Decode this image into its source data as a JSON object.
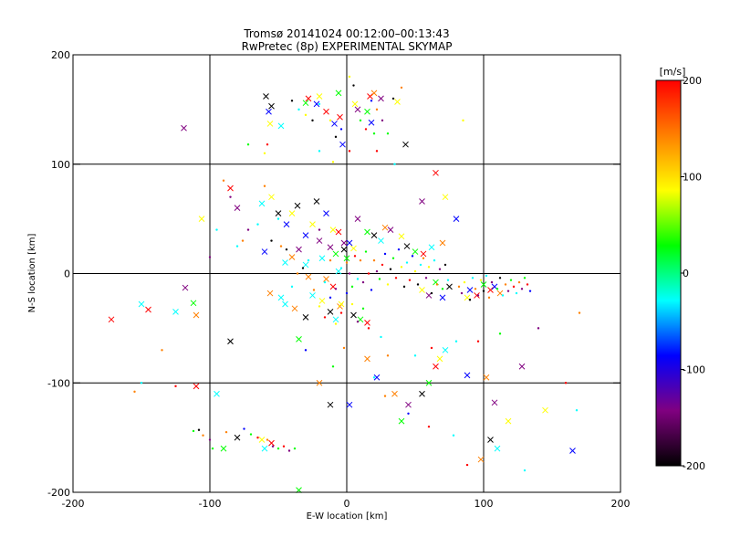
{
  "chart_data": {
    "type": "scatter",
    "title": "Tromsø 20141024 00:12:00–00:13:43",
    "subtitle": "RwPretec (8p) EXPERIMENTAL SKYMAP",
    "xlabel": "E-W location [km]",
    "ylabel": "N-S location [km]",
    "xlim": [
      -200,
      200
    ],
    "ylim": [
      -200,
      200
    ],
    "xticks": [
      "-200",
      "-100",
      "0",
      "100",
      "200"
    ],
    "yticks": [
      "-200",
      "-100",
      "0",
      "100",
      "200"
    ],
    "grid": true,
    "colorbar": {
      "label": "[m/s]",
      "range": [
        -200,
        200
      ],
      "ticks": [
        "200",
        "100",
        "0",
        "-100",
        "-200"
      ],
      "colors": [
        "#000000",
        "#800080",
        "#0000ff",
        "#00ffff",
        "#00ff00",
        "#ffff00",
        "#ff8000",
        "#ff0000"
      ]
    },
    "series": [
      {
        "marker": "x",
        "points": [
          [
            -119,
            133
          ],
          [
            -59,
            162
          ],
          [
            -57,
            148
          ],
          [
            -56,
            137
          ],
          [
            -55,
            153
          ],
          [
            -48,
            135
          ],
          [
            -30,
            156
          ],
          [
            -28,
            160
          ],
          [
            -22,
            155
          ],
          [
            -20,
            162
          ],
          [
            -15,
            148
          ],
          [
            -9,
            137
          ],
          [
            -6,
            165
          ],
          [
            -5,
            143
          ],
          [
            -3,
            118
          ],
          [
            6,
            155
          ],
          [
            8,
            150
          ],
          [
            15,
            148
          ],
          [
            17,
            162
          ],
          [
            18,
            138
          ],
          [
            20,
            165
          ],
          [
            25,
            160
          ],
          [
            37,
            157
          ],
          [
            43,
            118
          ],
          [
            -118,
            -13
          ],
          [
            -112,
            -27
          ],
          [
            -110,
            -38
          ],
          [
            -125,
            -35
          ],
          [
            -145,
            -33
          ],
          [
            -150,
            -28
          ],
          [
            -172,
            -42
          ],
          [
            -106,
            50
          ],
          [
            -85,
            78
          ],
          [
            -80,
            60
          ],
          [
            -62,
            64
          ],
          [
            -55,
            70
          ],
          [
            -50,
            55
          ],
          [
            -48,
            -22
          ],
          [
            -56,
            -18
          ],
          [
            -60,
            20
          ],
          [
            -45,
            10
          ],
          [
            -40,
            15
          ],
          [
            -35,
            22
          ],
          [
            -30,
            8
          ],
          [
            -28,
            -3
          ],
          [
            -20,
            30
          ],
          [
            -18,
            14
          ],
          [
            -15,
            -5
          ],
          [
            -12,
            24
          ],
          [
            -8,
            18
          ],
          [
            -5,
            -30
          ],
          [
            -2,
            28
          ],
          [
            0,
            14
          ],
          [
            -44,
            45
          ],
          [
            -40,
            55
          ],
          [
            -36,
            62
          ],
          [
            -30,
            35
          ],
          [
            -25,
            45
          ],
          [
            -22,
            66
          ],
          [
            -15,
            55
          ],
          [
            -10,
            40
          ],
          [
            -6,
            38
          ],
          [
            2,
            28
          ],
          [
            5,
            23
          ],
          [
            8,
            50
          ],
          [
            15,
            38
          ],
          [
            20,
            35
          ],
          [
            25,
            30
          ],
          [
            28,
            42
          ],
          [
            32,
            40
          ],
          [
            40,
            34
          ],
          [
            44,
            25
          ],
          [
            50,
            20
          ],
          [
            56,
            18
          ],
          [
            62,
            24
          ],
          [
            70,
            28
          ],
          [
            80,
            50
          ],
          [
            72,
            70
          ],
          [
            65,
            92
          ],
          [
            55,
            66
          ],
          [
            -45,
            -28
          ],
          [
            -38,
            -32
          ],
          [
            -30,
            -40
          ],
          [
            -25,
            -20
          ],
          [
            -18,
            -25
          ],
          [
            -12,
            -35
          ],
          [
            -8,
            -42
          ],
          [
            -4,
            -28
          ],
          [
            5,
            -38
          ],
          [
            10,
            -42
          ],
          [
            15,
            -45
          ],
          [
            -85,
            -62
          ],
          [
            -95,
            -110
          ],
          [
            -110,
            -103
          ],
          [
            -80,
            -150
          ],
          [
            -90,
            -160
          ],
          [
            -62,
            -152
          ],
          [
            -55,
            -155
          ],
          [
            -60,
            -160
          ],
          [
            -35,
            -60
          ],
          [
            -20,
            -100
          ],
          [
            -12,
            -120
          ],
          [
            2,
            -120
          ],
          [
            15,
            -78
          ],
          [
            22,
            -95
          ],
          [
            35,
            -110
          ],
          [
            45,
            -120
          ],
          [
            40,
            -135
          ],
          [
            55,
            -110
          ],
          [
            60,
            -100
          ],
          [
            65,
            -85
          ],
          [
            72,
            -70
          ],
          [
            68,
            -78
          ],
          [
            88,
            -93
          ],
          [
            102,
            -95
          ],
          [
            108,
            -118
          ],
          [
            118,
            -135
          ],
          [
            128,
            -85
          ],
          [
            145,
            -125
          ],
          [
            165,
            -162
          ],
          [
            105,
            -152
          ],
          [
            110,
            -160
          ],
          [
            98,
            -170
          ],
          [
            -35,
            -198
          ],
          [
            100,
            -10
          ],
          [
            105,
            -15
          ],
          [
            108,
            -12
          ],
          [
            112,
            -18
          ],
          [
            95,
            -20
          ],
          [
            90,
            -15
          ],
          [
            88,
            -22
          ],
          [
            55,
            -15
          ],
          [
            60,
            -20
          ],
          [
            65,
            -8
          ],
          [
            75,
            -12
          ],
          [
            70,
            -22
          ],
          [
            -2,
            22
          ],
          [
            -6,
            2
          ],
          [
            -10,
            -12
          ]
        ]
      },
      {
        "marker": "dot",
        "points": [
          [
            -108,
            -143
          ],
          [
            -112,
            -144
          ],
          [
            -105,
            -148
          ],
          [
            -100,
            -152
          ],
          [
            -98,
            -160
          ],
          [
            -88,
            -145
          ],
          [
            -58,
            -152
          ],
          [
            -54,
            -158
          ],
          [
            -50,
            -160
          ],
          [
            -46,
            -158
          ],
          [
            -42,
            -162
          ],
          [
            -38,
            -160
          ],
          [
            -75,
            -142
          ],
          [
            -70,
            -147
          ],
          [
            -65,
            -150
          ],
          [
            -40,
            158
          ],
          [
            -35,
            150
          ],
          [
            -30,
            145
          ],
          [
            -25,
            140
          ],
          [
            -20,
            155
          ],
          [
            -12,
            140
          ],
          [
            -8,
            125
          ],
          [
            -4,
            132
          ],
          [
            2,
            180
          ],
          [
            5,
            172
          ],
          [
            10,
            140
          ],
          [
            14,
            132
          ],
          [
            18,
            158
          ],
          [
            22,
            150
          ],
          [
            26,
            140
          ],
          [
            30,
            128
          ],
          [
            34,
            160
          ],
          [
            -60,
            110
          ],
          [
            -58,
            118
          ],
          [
            -72,
            118
          ],
          [
            -20,
            112
          ],
          [
            -10,
            102
          ],
          [
            2,
            112
          ],
          [
            20,
            128
          ],
          [
            22,
            112
          ],
          [
            35,
            100
          ],
          [
            40,
            170
          ],
          [
            85,
            140
          ],
          [
            -100,
            15
          ],
          [
            -95,
            40
          ],
          [
            -90,
            85
          ],
          [
            -85,
            70
          ],
          [
            -80,
            25
          ],
          [
            -76,
            30
          ],
          [
            -72,
            40
          ],
          [
            -65,
            45
          ],
          [
            -60,
            80
          ],
          [
            -55,
            30
          ],
          [
            -50,
            50
          ],
          [
            -48,
            25
          ],
          [
            -44,
            22
          ],
          [
            -40,
            -12
          ],
          [
            -36,
            0
          ],
          [
            -32,
            5
          ],
          [
            -28,
            12
          ],
          [
            -24,
            -15
          ],
          [
            -20,
            40
          ],
          [
            -16,
            -8
          ],
          [
            -12,
            12
          ],
          [
            -8,
            -14
          ],
          [
            -4,
            5
          ],
          [
            0,
            10
          ],
          [
            2,
            0
          ],
          [
            4,
            -12
          ],
          [
            6,
            16
          ],
          [
            8,
            -5
          ],
          [
            10,
            12
          ],
          [
            12,
            -8
          ],
          [
            14,
            20
          ],
          [
            16,
            0
          ],
          [
            18,
            -15
          ],
          [
            20,
            12
          ],
          [
            22,
            2
          ],
          [
            24,
            -5
          ],
          [
            26,
            8
          ],
          [
            28,
            18
          ],
          [
            30,
            -10
          ],
          [
            32,
            4
          ],
          [
            34,
            14
          ],
          [
            36,
            -4
          ],
          [
            38,
            22
          ],
          [
            40,
            6
          ],
          [
            42,
            -12
          ],
          [
            44,
            10
          ],
          [
            46,
            -6
          ],
          [
            48,
            16
          ],
          [
            50,
            2
          ],
          [
            52,
            -10
          ],
          [
            54,
            8
          ],
          [
            56,
            14
          ],
          [
            58,
            -4
          ],
          [
            60,
            6
          ],
          [
            62,
            -18
          ],
          [
            64,
            12
          ],
          [
            66,
            -10
          ],
          [
            68,
            4
          ],
          [
            70,
            -14
          ],
          [
            72,
            8
          ],
          [
            74,
            -6
          ],
          [
            82,
            -12
          ],
          [
            84,
            -18
          ],
          [
            86,
            -8
          ],
          [
            90,
            -24
          ],
          [
            92,
            -4
          ],
          [
            94,
            -14
          ],
          [
            96,
            -20
          ],
          [
            98,
            -6
          ],
          [
            100,
            -16
          ],
          [
            102,
            -2
          ],
          [
            104,
            -22
          ],
          [
            106,
            -8
          ],
          [
            110,
            -14
          ],
          [
            112,
            -4
          ],
          [
            114,
            -20
          ],
          [
            116,
            -10
          ],
          [
            118,
            -16
          ],
          [
            120,
            -6
          ],
          [
            122,
            -12
          ],
          [
            124,
            -18
          ],
          [
            126,
            -8
          ],
          [
            128,
            -14
          ],
          [
            130,
            -4
          ],
          [
            132,
            -10
          ],
          [
            134,
            -16
          ],
          [
            -20,
            -30
          ],
          [
            -16,
            -40
          ],
          [
            -12,
            -22
          ],
          [
            -8,
            -46
          ],
          [
            -4,
            -36
          ],
          [
            0,
            -18
          ],
          [
            4,
            -28
          ],
          [
            8,
            -44
          ],
          [
            12,
            -32
          ],
          [
            16,
            -50
          ],
          [
            25,
            -58
          ],
          [
            30,
            -75
          ],
          [
            50,
            -75
          ],
          [
            62,
            -68
          ],
          [
            80,
            -62
          ],
          [
            96,
            -62
          ],
          [
            112,
            -55
          ],
          [
            140,
            -50
          ],
          [
            170,
            -36
          ],
          [
            -135,
            -70
          ],
          [
            -150,
            -100
          ],
          [
            -155,
            -108
          ],
          [
            -125,
            -103
          ],
          [
            -30,
            -70
          ],
          [
            -10,
            -85
          ],
          [
            -2,
            -68
          ],
          [
            20,
            -95
          ],
          [
            28,
            -112
          ],
          [
            45,
            -128
          ],
          [
            60,
            -140
          ],
          [
            78,
            -148
          ],
          [
            88,
            -175
          ],
          [
            160,
            -100
          ],
          [
            168,
            -125
          ],
          [
            130,
            -180
          ]
        ]
      }
    ],
    "colors": {
      "plotAreaBorder": "#000000",
      "gridLines": "#000000"
    }
  }
}
